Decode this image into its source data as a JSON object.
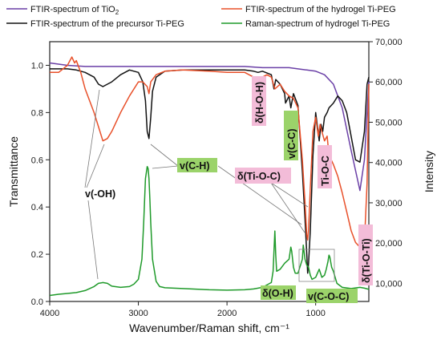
{
  "chart_data": {
    "type": "line",
    "xlabel": "Wavenumber/Raman shift, cm⁻¹",
    "ylabel_left": "Transmittance",
    "ylabel_right": "Intensity",
    "xlim": [
      4000,
      400
    ],
    "ylim_left": [
      0.0,
      1.1
    ],
    "ylim_right": [
      5500,
      70000
    ],
    "x_ticks": [
      "4000",
      "3000",
      "2000",
      "1000"
    ],
    "x_tick_values": [
      4000,
      3000,
      2000,
      1000
    ],
    "y_left_ticks": [
      "0.0",
      "0.2",
      "0.4",
      "0.6",
      "0.8",
      "1.0"
    ],
    "y_left_tick_values": [
      0.0,
      0.2,
      0.4,
      0.6,
      0.8,
      1.0
    ],
    "y_right_ticks": [
      "10,000",
      "20,000",
      "30,000",
      "40,000",
      "50,000",
      "60,000",
      "70,000"
    ],
    "y_right_tick_values": [
      10000,
      20000,
      30000,
      40000,
      50000,
      60000,
      70000
    ],
    "grid": false,
    "legend_position": "top",
    "series": [
      {
        "name": "FTIR-spectrum of TiO₂",
        "name_base": "FTIR-spectrum of TiO",
        "name_sub": "2",
        "color": "#6a3fa6",
        "axis": "left",
        "x": [
          4000,
          3800,
          3600,
          3400,
          3200,
          3000,
          2800,
          2600,
          2400,
          2200,
          2000,
          1800,
          1600,
          1400,
          1300,
          1200,
          1100,
          1000,
          900,
          800,
          700,
          600,
          500,
          450,
          400
        ],
        "y": [
          1.01,
          1.0,
          0.995,
          0.995,
          0.995,
          0.995,
          0.995,
          0.995,
          0.995,
          0.995,
          0.995,
          0.995,
          0.99,
          0.99,
          0.99,
          0.985,
          0.98,
          0.975,
          0.96,
          0.92,
          0.82,
          0.64,
          0.47,
          0.6,
          0.93
        ]
      },
      {
        "name": "FTIR-spectrum of the precursor Ti-PEG",
        "color": "#111111",
        "axis": "left",
        "x": [
          4000,
          3800,
          3700,
          3600,
          3500,
          3450,
          3400,
          3300,
          3200,
          3100,
          3000,
          2950,
          2920,
          2900,
          2880,
          2860,
          2840,
          2800,
          2700,
          2500,
          2000,
          1800,
          1700,
          1650,
          1600,
          1500,
          1470,
          1450,
          1400,
          1350,
          1340,
          1300,
          1280,
          1250,
          1200,
          1150,
          1120,
          1100,
          1090,
          1080,
          1060,
          1030,
          1000,
          960,
          940,
          920,
          900,
          870,
          850,
          800,
          750,
          700,
          650,
          600,
          550,
          500,
          450,
          420,
          400
        ],
        "y": [
          0.985,
          0.985,
          0.98,
          0.97,
          0.95,
          0.92,
          0.91,
          0.93,
          0.96,
          0.98,
          0.97,
          0.93,
          0.85,
          0.72,
          0.69,
          0.78,
          0.89,
          0.95,
          0.975,
          0.98,
          0.98,
          0.98,
          0.975,
          0.97,
          0.975,
          0.96,
          0.9,
          0.94,
          0.92,
          0.88,
          0.84,
          0.87,
          0.82,
          0.88,
          0.83,
          0.55,
          0.35,
          0.2,
          0.12,
          0.16,
          0.3,
          0.62,
          0.8,
          0.68,
          0.75,
          0.72,
          0.78,
          0.8,
          0.82,
          0.84,
          0.87,
          0.85,
          0.8,
          0.7,
          0.6,
          0.59,
          0.72,
          0.92,
          0.95
        ]
      },
      {
        "name": "FTIR-spectrum of the hydrogel Ti-PEG",
        "color": "#e8502a",
        "axis": "left",
        "x": [
          4000,
          3900,
          3800,
          3750,
          3720,
          3700,
          3650,
          3600,
          3500,
          3450,
          3400,
          3350,
          3300,
          3200,
          3100,
          3000,
          2950,
          2900,
          2880,
          2860,
          2800,
          2700,
          2500,
          2200,
          2000,
          1800,
          1700,
          1660,
          1640,
          1620,
          1600,
          1550,
          1500,
          1460,
          1400,
          1350,
          1300,
          1250,
          1200,
          1150,
          1120,
          1100,
          1090,
          1080,
          1060,
          1030,
          1000,
          970,
          950,
          930,
          900,
          870,
          850,
          800,
          750,
          700,
          650,
          600,
          550,
          500,
          480,
          450,
          420,
          400
        ],
        "y": [
          0.97,
          0.97,
          1.0,
          1.035,
          1.01,
          1.02,
          0.97,
          0.9,
          0.8,
          0.74,
          0.68,
          0.69,
          0.72,
          0.8,
          0.87,
          0.93,
          0.93,
          0.91,
          0.88,
          0.93,
          0.96,
          0.975,
          0.98,
          0.975,
          0.97,
          0.97,
          0.95,
          0.91,
          0.88,
          0.89,
          0.95,
          0.96,
          0.95,
          0.9,
          0.92,
          0.89,
          0.87,
          0.86,
          0.82,
          0.6,
          0.42,
          0.28,
          0.26,
          0.3,
          0.48,
          0.72,
          0.78,
          0.7,
          0.75,
          0.72,
          0.68,
          0.7,
          0.62,
          0.58,
          0.53,
          0.46,
          0.38,
          0.3,
          0.25,
          0.23,
          0.22,
          0.25,
          0.5,
          0.92
        ]
      },
      {
        "name": "Raman-spectrum of hydrogel Ti-PEG",
        "color": "#1f9a2a",
        "axis": "right",
        "x": [
          4000,
          3900,
          3800,
          3700,
          3600,
          3500,
          3450,
          3400,
          3350,
          3300,
          3200,
          3100,
          3050,
          3000,
          2960,
          2940,
          2920,
          2900,
          2890,
          2880,
          2870,
          2860,
          2840,
          2800,
          2760,
          2700,
          2600,
          2400,
          2200,
          2000,
          1800,
          1700,
          1600,
          1500,
          1480,
          1470,
          1460,
          1450,
          1440,
          1400,
          1350,
          1300,
          1280,
          1270,
          1250,
          1230,
          1200,
          1150,
          1140,
          1120,
          1100,
          1080,
          1060,
          1040,
          1000,
          980,
          960,
          930,
          900,
          880,
          860,
          850,
          840,
          820,
          800,
          780,
          760,
          700,
          600,
          500,
          450,
          400
        ],
        "y": [
          7000,
          7300,
          7500,
          7700,
          8200,
          9200,
          10000,
          10200,
          10000,
          9300,
          9000,
          9200,
          9800,
          11000,
          16000,
          25000,
          36000,
          39000,
          38500,
          36000,
          31000,
          25000,
          16000,
          10500,
          9200,
          8900,
          8800,
          8600,
          8400,
          8300,
          8400,
          8600,
          9000,
          10200,
          13000,
          18000,
          23000,
          17000,
          13000,
          13500,
          15000,
          16000,
          19000,
          18000,
          14000,
          12500,
          12500,
          16000,
          19500,
          16000,
          14500,
          14000,
          12000,
          11000,
          11500,
          12500,
          13500,
          11500,
          12000,
          13500,
          15500,
          17000,
          16500,
          14000,
          13000,
          11500,
          10000,
          9000,
          8700,
          9000,
          8800,
          8500
        ]
      }
    ],
    "annotations": [
      {
        "text": "v(-OH)",
        "bg": ""
      },
      {
        "text": "v(C-H)",
        "bg": "#9bd36a"
      },
      {
        "text": "δ(H-O-H)",
        "bg": "#f3bcd8"
      },
      {
        "text": "v(C-C)",
        "bg": "#9bd36a"
      },
      {
        "text": "δ(Ti-O-C)",
        "bg": "#f3bcd8"
      },
      {
        "text": "Ti-O-C",
        "bg": "#f3bcd8"
      },
      {
        "text": "δ(O-H)",
        "bg": "#9bd36a"
      },
      {
        "text": "v(C-O-C)",
        "bg": "#9bd36a"
      },
      {
        "text": "δ(Ti-O-Ti)",
        "bg": "#f3bcd8"
      }
    ]
  }
}
